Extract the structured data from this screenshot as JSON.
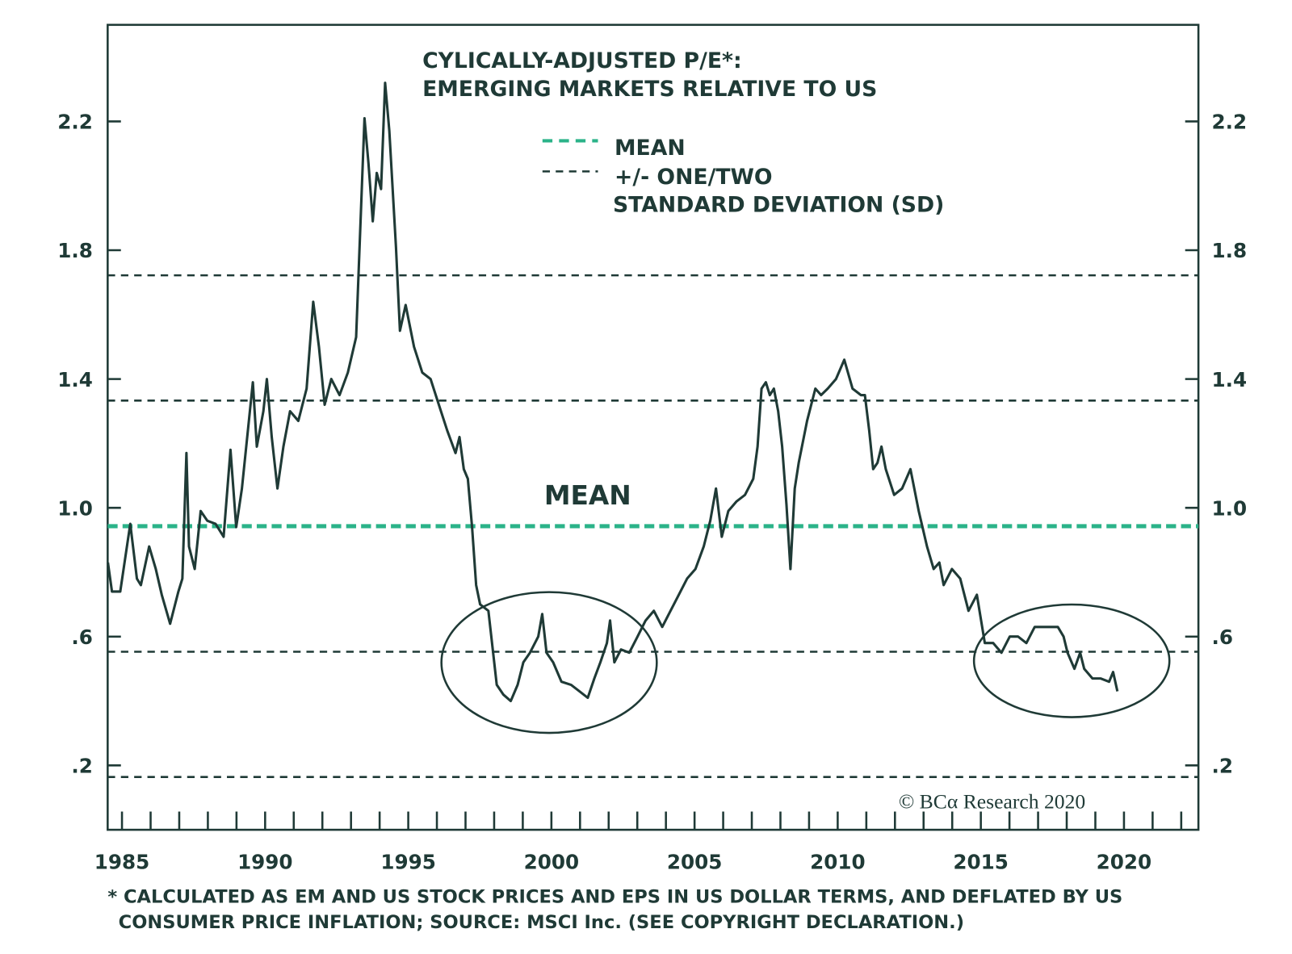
{
  "chart_data": {
    "type": "line",
    "title": [
      "CYLICALLY-ADJUSTED P/E*:",
      "EMERGING MARKETS RELATIVE TO US"
    ],
    "annotation": "MEAN",
    "annotation_color": "#c0272d",
    "footnote": [
      "* CALCULATED AS EM AND US STOCK PRICES AND EPS IN US DOLLAR TERMS, AND DEFLATED BY US",
      "CONSUMER PRICE INFLATION; SOURCE: MSCI Inc. (SEE COPYRIGHT DECLARATION.)"
    ],
    "credit": "© BCα Research 2020",
    "xlim": [
      1984.5,
      2022.6
    ],
    "xticks": [
      1985,
      1990,
      1995,
      2000,
      2005,
      2010,
      2015,
      2020
    ],
    "xminorticks": [
      1985,
      1986,
      1987,
      1988,
      1989,
      1990,
      1991,
      1992,
      1993,
      1994,
      1995,
      1996,
      1997,
      1998,
      1999,
      2000,
      2001,
      2002,
      2003,
      2004,
      2005,
      2006,
      2007,
      2008,
      2009,
      2010,
      2011,
      2012,
      2013,
      2014,
      2015,
      2016,
      2017,
      2018,
      2019,
      2020,
      2021,
      2022
    ],
    "ylim": [
      0,
      2.5
    ],
    "yticks": [
      {
        "value": 0.2,
        "label": ".2"
      },
      {
        "value": 0.6,
        "label": ".6"
      },
      {
        "value": 1.0,
        "label": "1.0"
      },
      1.4,
      1.8,
      2.2
    ],
    "grid": false,
    "mean_line": {
      "name": "MEAN",
      "value": 0.943,
      "color": "#2bb389"
    },
    "sd_lines": {
      "name": [
        "+/- ONE/TWO",
        "STANDARD DEVIATION (SD)"
      ],
      "values": [
        0.164,
        0.553,
        1.333,
        1.722
      ],
      "color": "#1f3a36"
    },
    "x": [
      1984.51,
      1984.65,
      1984.94,
      1985.29,
      1985.52,
      1985.66,
      1985.95,
      1986.18,
      1986.39,
      1986.68,
      1986.97,
      1987.11,
      1987.25,
      1987.34,
      1987.54,
      1987.75,
      1987.98,
      1988.27,
      1988.55,
      1988.79,
      1988.99,
      1989.19,
      1989.57,
      1989.71,
      1989.94,
      1990.06,
      1990.23,
      1990.43,
      1990.64,
      1990.87,
      1991.16,
      1991.45,
      1991.68,
      1991.88,
      1992.08,
      1992.31,
      1992.6,
      1992.89,
      1993.18,
      1993.47,
      1993.61,
      1993.76,
      1993.9,
      1994.05,
      1994.19,
      1994.34,
      1994.57,
      1994.71,
      1994.91,
      1995.2,
      1995.49,
      1995.78,
      1996.07,
      1996.36,
      1996.65,
      1996.79,
      1996.94,
      1997.08,
      1997.23,
      1997.37,
      1997.51,
      1997.8,
      1998.09,
      1998.32,
      1998.58,
      1998.82,
      1999.02,
      1999.25,
      1999.54,
      1999.68,
      1999.83,
      2000.06,
      2000.35,
      2000.69,
      2000.98,
      2001.27,
      2001.5,
      2001.71,
      2001.94,
      2002.05,
      2002.2,
      2002.43,
      2002.72,
      2003.01,
      2003.29,
      2003.58,
      2003.87,
      2004.16,
      2004.45,
      2004.74,
      2005.03,
      2005.32,
      2005.55,
      2005.75,
      2005.95,
      2006.18,
      2006.47,
      2006.76,
      2007.05,
      2007.2,
      2007.34,
      2007.49,
      2007.63,
      2007.77,
      2007.92,
      2008.06,
      2008.21,
      2008.35,
      2008.5,
      2008.64,
      2008.93,
      2009.22,
      2009.42,
      2009.65,
      2009.94,
      2010.23,
      2010.52,
      2010.81,
      2010.95,
      2011.1,
      2011.24,
      2011.39,
      2011.53,
      2011.68,
      2011.97,
      2012.25,
      2012.54,
      2012.83,
      2013.12,
      2013.35,
      2013.55,
      2013.7,
      2013.99,
      2014.28,
      2014.57,
      2014.86,
      2015.14,
      2015.43,
      2015.72,
      2016.01,
      2016.3,
      2016.59,
      2016.88,
      2017.31,
      2017.69,
      2017.89,
      2018.03,
      2018.27,
      2018.47,
      2018.61,
      2018.9,
      2019.19,
      2019.48,
      2019.62,
      2019.77
    ],
    "series": [
      {
        "color": "#1f3a36",
        "values": [
          0.83,
          0.74,
          0.74,
          0.95,
          0.78,
          0.76,
          0.88,
          0.81,
          0.73,
          0.64,
          0.74,
          0.78,
          1.17,
          0.88,
          0.81,
          0.99,
          0.96,
          0.95,
          0.91,
          1.18,
          0.94,
          1.06,
          1.39,
          1.19,
          1.3,
          1.4,
          1.22,
          1.06,
          1.19,
          1.3,
          1.27,
          1.37,
          1.64,
          1.5,
          1.32,
          1.4,
          1.35,
          1.42,
          1.53,
          2.21,
          2.07,
          1.89,
          2.04,
          1.99,
          2.32,
          2.17,
          1.81,
          1.55,
          1.63,
          1.5,
          1.42,
          1.4,
          1.32,
          1.24,
          1.17,
          1.22,
          1.12,
          1.09,
          0.94,
          0.76,
          0.7,
          0.68,
          0.45,
          0.42,
          0.4,
          0.45,
          0.52,
          0.55,
          0.6,
          0.67,
          0.55,
          0.52,
          0.46,
          0.45,
          0.43,
          0.41,
          0.47,
          0.52,
          0.58,
          0.65,
          0.52,
          0.56,
          0.55,
          0.6,
          0.65,
          0.68,
          0.63,
          0.68,
          0.73,
          0.78,
          0.81,
          0.88,
          0.96,
          1.06,
          0.91,
          0.99,
          1.02,
          1.04,
          1.09,
          1.19,
          1.37,
          1.39,
          1.35,
          1.37,
          1.3,
          1.19,
          1.01,
          0.81,
          1.06,
          1.14,
          1.27,
          1.37,
          1.35,
          1.37,
          1.4,
          1.46,
          1.37,
          1.35,
          1.35,
          1.24,
          1.12,
          1.14,
          1.19,
          1.12,
          1.04,
          1.06,
          1.12,
          0.99,
          0.88,
          0.81,
          0.83,
          0.76,
          0.81,
          0.78,
          0.68,
          0.73,
          0.58,
          0.58,
          0.55,
          0.6,
          0.6,
          0.58,
          0.63,
          0.63,
          0.63,
          0.6,
          0.55,
          0.5,
          0.55,
          0.5,
          0.47,
          0.47,
          0.46,
          0.49,
          0.43
        ]
      }
    ]
  }
}
